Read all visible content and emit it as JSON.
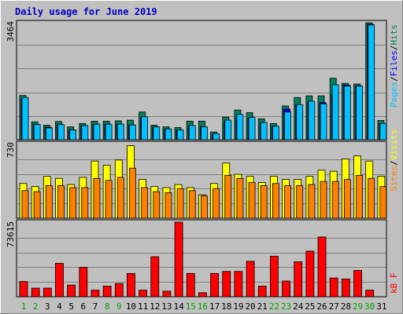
{
  "title": "Daily usage for June 2019",
  "colors": {
    "background": "#c0c0c0",
    "plot_background": "#c0c0c0",
    "title": "#0000c0",
    "hits": "#00805c",
    "files": "#0000ff",
    "pages": "#00c0ff",
    "visits": "#ffff00",
    "sites": "#ff8000",
    "kbytes": "#ff0000",
    "weekend_day": "#00a000",
    "weekday": "#000000"
  },
  "chart_data": [
    {
      "type": "bar",
      "panel": "top",
      "title": "Daily usage for June 2019",
      "ymax_label": "3464",
      "legend": [
        "Pages",
        "Files",
        "Hits"
      ],
      "categories": [
        "1",
        "2",
        "3",
        "4",
        "5",
        "6",
        "7",
        "8",
        "9",
        "10",
        "11",
        "12",
        "13",
        "14",
        "15",
        "16",
        "17",
        "18",
        "19",
        "20",
        "21",
        "22",
        "23",
        "24",
        "25",
        "26",
        "27",
        "28",
        "29",
        "30",
        "31"
      ],
      "weekend_days": [
        "1",
        "2",
        "8",
        "9",
        "15",
        "16",
        "22",
        "23",
        "29",
        "30"
      ],
      "series": [
        {
          "name": "Hits",
          "values": [
            1310,
            530,
            430,
            540,
            380,
            480,
            550,
            550,
            560,
            580,
            820,
            430,
            380,
            360,
            550,
            550,
            230,
            670,
            880,
            800,
            620,
            480,
            1000,
            1250,
            1300,
            1300,
            1820,
            1670,
            1650,
            3464,
            570
          ]
        },
        {
          "name": "Files",
          "values": [
            1200,
            450,
            370,
            450,
            290,
            420,
            460,
            460,
            450,
            440,
            660,
            380,
            320,
            290,
            410,
            380,
            140,
            550,
            650,
            640,
            490,
            400,
            910,
            1040,
            1120,
            1100,
            1340,
            1620,
            1600,
            3420,
            480
          ]
        },
        {
          "name": "Pages",
          "values": [
            1250,
            450,
            350,
            450,
            290,
            420,
            460,
            460,
            460,
            440,
            680,
            380,
            320,
            290,
            420,
            380,
            180,
            580,
            750,
            660,
            510,
            400,
            820,
            1040,
            1140,
            1060,
            1630,
            1590,
            1590,
            3400,
            480
          ]
        }
      ],
      "ylim": [
        0,
        3464
      ]
    },
    {
      "type": "bar",
      "panel": "middle",
      "ymax_label": "730",
      "legend": [
        "Sites",
        "Visits"
      ],
      "categories": [
        "1",
        "2",
        "3",
        "4",
        "5",
        "6",
        "7",
        "8",
        "9",
        "10",
        "11",
        "12",
        "13",
        "14",
        "15",
        "16",
        "17",
        "18",
        "19",
        "20",
        "21",
        "22",
        "23",
        "24",
        "25",
        "26",
        "27",
        "28",
        "29",
        "30",
        "31"
      ],
      "series": [
        {
          "name": "Visits",
          "values": [
            340,
            310,
            410,
            390,
            330,
            400,
            560,
            520,
            570,
            710,
            380,
            310,
            300,
            330,
            300,
            230,
            340,
            540,
            430,
            410,
            350,
            410,
            380,
            380,
            410,
            470,
            460,
            580,
            610,
            560,
            410
          ]
        },
        {
          "name": "Sites",
          "values": [
            270,
            260,
            320,
            320,
            300,
            300,
            390,
            370,
            400,
            490,
            300,
            260,
            250,
            290,
            270,
            220,
            290,
            420,
            390,
            350,
            320,
            340,
            320,
            320,
            330,
            360,
            360,
            380,
            420,
            390,
            310
          ]
        }
      ],
      "ylim": [
        0,
        730
      ]
    },
    {
      "type": "bar",
      "panel": "bottom",
      "ymax_label": "73615",
      "legend": [
        "kB F"
      ],
      "categories": [
        "1",
        "2",
        "3",
        "4",
        "5",
        "6",
        "7",
        "8",
        "9",
        "10",
        "11",
        "12",
        "13",
        "14",
        "15",
        "16",
        "17",
        "18",
        "19",
        "20",
        "21",
        "22",
        "23",
        "24",
        "25",
        "26",
        "27",
        "28",
        "29",
        "30",
        "31"
      ],
      "series": [
        {
          "name": "kB F",
          "values": [
            15000,
            8500,
            8500,
            33000,
            11500,
            29000,
            6500,
            10500,
            13000,
            23000,
            6500,
            39500,
            5500,
            73615,
            23000,
            4000,
            23000,
            25000,
            25000,
            35000,
            10500,
            40000,
            15500,
            34500,
            45000,
            59000,
            18500,
            17500,
            26000,
            6500,
            0
          ]
        }
      ],
      "ylim": [
        0,
        73615
      ]
    }
  ]
}
